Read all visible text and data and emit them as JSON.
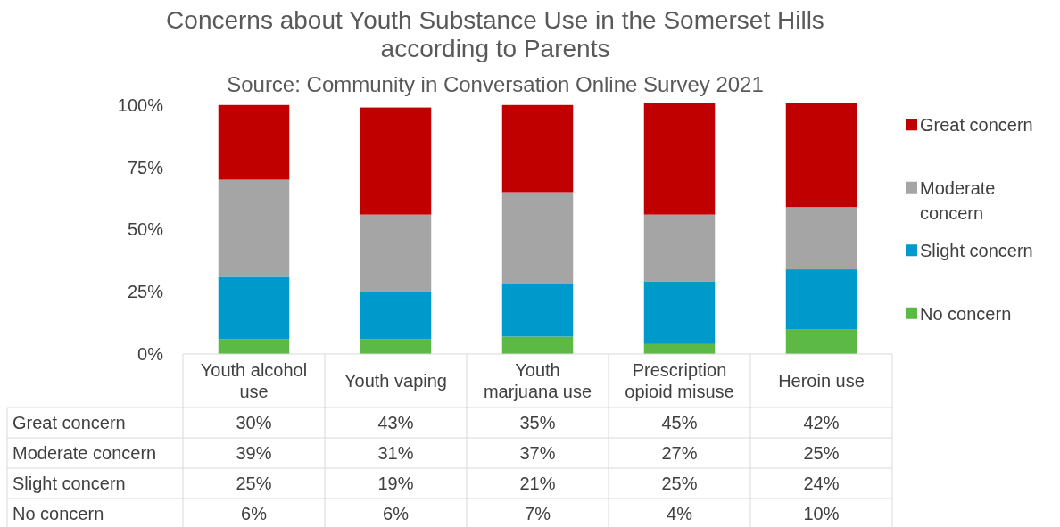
{
  "chart_data": {
    "type": "bar",
    "stacked": true,
    "title": "Concerns about Youth Substance Use in the Somerset Hills according to Parents",
    "subtitle": "Source: Community in Conversation Online Survey 2021",
    "categories": [
      "Youth alcohol use",
      "Youth vaping",
      "Youth marjuana use",
      "Prescription opioid misuse",
      "Heroin use"
    ],
    "series": [
      {
        "name": "No concern",
        "color": "#5cb946",
        "values": [
          6,
          6,
          7,
          4,
          10
        ],
        "value_labels": [
          "6%",
          "6%",
          "7%",
          "4%",
          "10%"
        ]
      },
      {
        "name": "Slight concern",
        "color": "#0099cc",
        "values": [
          25,
          19,
          21,
          25,
          24
        ],
        "value_labels": [
          "25%",
          "19%",
          "21%",
          "25%",
          "24%"
        ]
      },
      {
        "name": "Moderate concern",
        "color": "#a5a5a5",
        "values": [
          39,
          31,
          37,
          27,
          25
        ],
        "value_labels": [
          "39%",
          "31%",
          "37%",
          "27%",
          "25%"
        ]
      },
      {
        "name": "Great concern",
        "color": "#c00000",
        "values": [
          30,
          43,
          35,
          45,
          42
        ],
        "value_labels": [
          "30%",
          "43%",
          "35%",
          "45%",
          "42%"
        ]
      }
    ],
    "ylim": [
      0,
      101
    ],
    "yticks": [
      {
        "value": 0,
        "label": "0%"
      },
      {
        "value": 25,
        "label": "25%"
      },
      {
        "value": 50,
        "label": "50%"
      },
      {
        "value": 75,
        "label": "75%"
      },
      {
        "value": 100,
        "label": "100%"
      }
    ],
    "legend": "right"
  }
}
